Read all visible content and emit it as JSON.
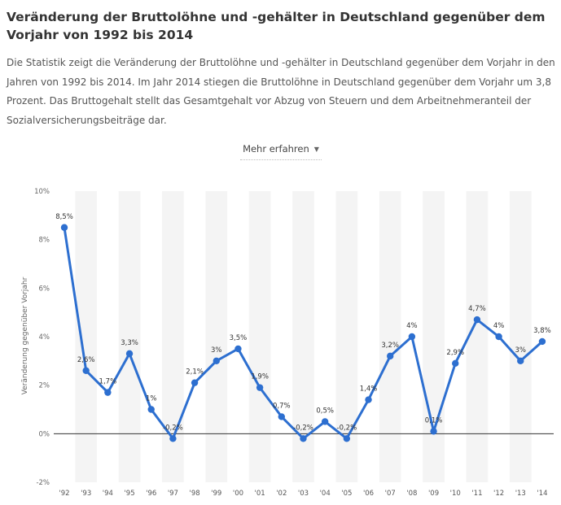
{
  "page": {
    "title": "Veränderung der Bruttolöhne und -gehälter in Deutschland gegenüber dem Vorjahr von 1992 bis 2014",
    "description": "Die Statistik zeigt die Veränderung der Bruttolöhne und -gehälter in Deutschland gegenüber dem Vorjahr in den Jahren von 1992 bis 2014. Im Jahr 2014 stiegen die Bruttolöhne in Deutschland gegenüber dem Vorjahr um 3,8 Prozent. Das Bruttogehalt stellt das Gesamtgehalt vor Abzug von Steuern und dem Arbeitnehmeranteil der Sozialversicherungsbeiträge dar.",
    "more_button": "Mehr erfahren"
  },
  "chart_data": {
    "type": "line",
    "ylabel": "Veränderung gegenüber Vorjahr",
    "ylim": [
      -2,
      10
    ],
    "y_ticks": [
      -2,
      0,
      2,
      4,
      6,
      8,
      10
    ],
    "y_tick_labels": [
      "-2%",
      "0%",
      "2%",
      "4%",
      "6%",
      "8%",
      "10%"
    ],
    "categories": [
      "'92",
      "'93",
      "'94",
      "'95",
      "'96",
      "'97",
      "'98",
      "'99",
      "'00",
      "'01",
      "'02",
      "'03",
      "'04",
      "'05",
      "'06",
      "'07",
      "'08",
      "'09",
      "'10",
      "'11",
      "'12",
      "'13",
      "'14"
    ],
    "values": [
      8.5,
      2.6,
      1.7,
      3.3,
      1.0,
      -0.2,
      2.1,
      3.0,
      3.5,
      1.9,
      0.7,
      -0.2,
      0.5,
      -0.2,
      1.4,
      3.2,
      4.0,
      0.1,
      2.9,
      4.7,
      4.0,
      3.0,
      3.8
    ],
    "data_labels": [
      "8,5%",
      "2,6%",
      "1,7%",
      "3,3%",
      "1%",
      "-0,2%",
      "2,1%",
      "3%",
      "3,5%",
      "1,9%",
      "0,7%",
      "-0,2%",
      "0,5%",
      "-0,2%",
      "1,4%",
      "3,2%",
      "4%",
      "0,1%",
      "2,9%",
      "4,7%",
      "4%",
      "3%",
      "3,8%"
    ],
    "line_color": "#2d6fd0",
    "band_color": "#f4f4f4",
    "grid": false,
    "legend": "none"
  }
}
